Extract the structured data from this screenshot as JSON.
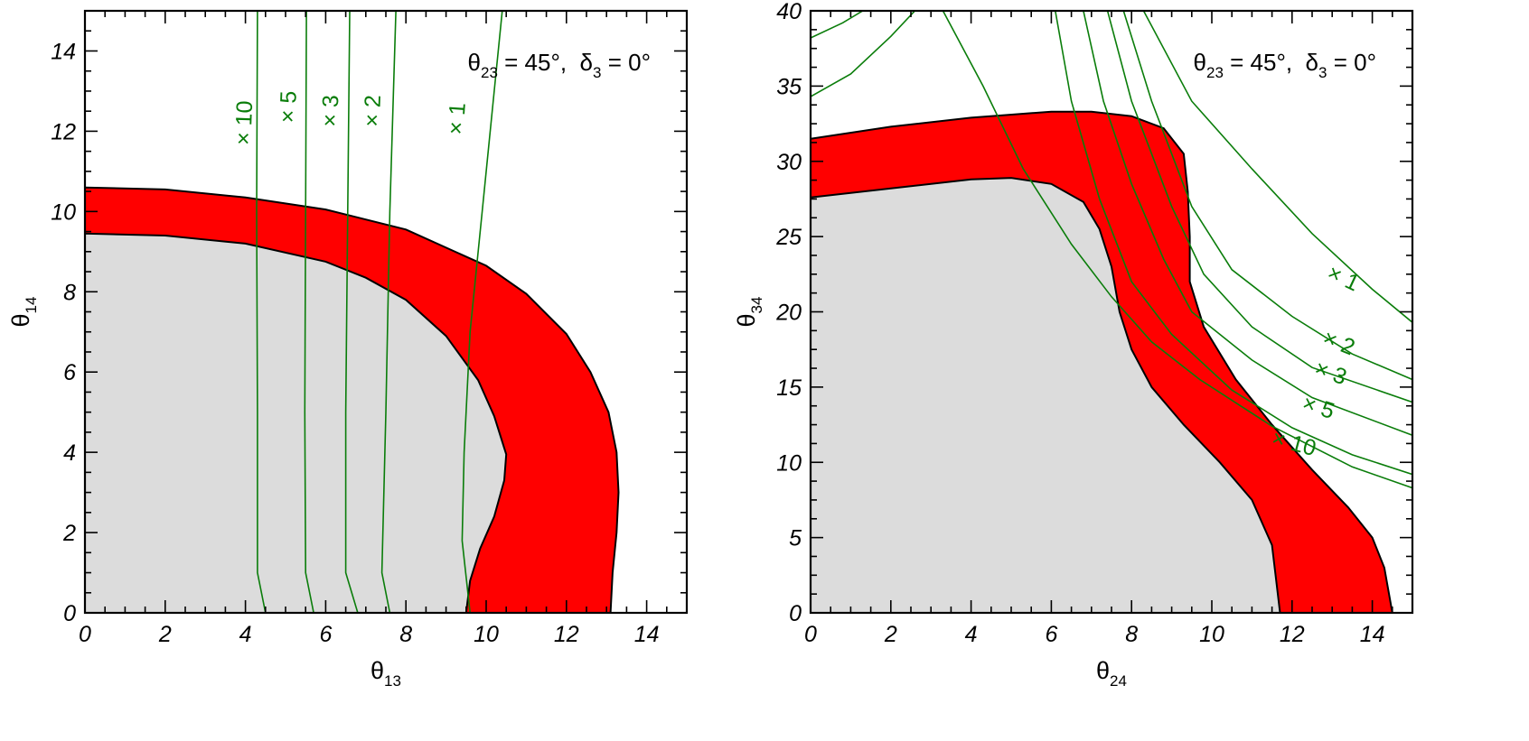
{
  "chart_data": [
    {
      "type": "area",
      "xlabel": "θ",
      "xlabel_sub": "13",
      "ylabel": "θ",
      "ylabel_sub": "14",
      "xlim": [
        0,
        15
      ],
      "ylim": [
        0,
        15
      ],
      "xticks": [
        "0",
        "2",
        "4",
        "6",
        "8",
        "10",
        "12",
        "14"
      ],
      "yticks": [
        "0",
        "2",
        "4",
        "6",
        "8",
        "10",
        "12",
        "14"
      ],
      "annotation": {
        "theta": "θ",
        "theta_sub": "23",
        "theta_val": " = 45°,  ",
        "delta": "δ",
        "delta_sub": "3",
        "delta_val": " = 0°"
      },
      "colors": {
        "allowed": "#dcdcdc",
        "band": "#ff0000",
        "contour": "#0a7d0a"
      },
      "allowed_region_boundary": [
        [
          0,
          9.45
        ],
        [
          2,
          9.4
        ],
        [
          4,
          9.2
        ],
        [
          6,
          8.75
        ],
        [
          7,
          8.35
        ],
        [
          8,
          7.8
        ],
        [
          9,
          6.9
        ],
        [
          9.8,
          5.8
        ],
        [
          10.2,
          4.9
        ],
        [
          10.5,
          3.95
        ],
        [
          10.45,
          3.3
        ],
        [
          10.2,
          2.4
        ],
        [
          9.85,
          1.6
        ],
        [
          9.6,
          0.8
        ],
        [
          9.5,
          0
        ]
      ],
      "band_outer_boundary": [
        [
          0,
          10.6
        ],
        [
          2,
          10.55
        ],
        [
          4,
          10.35
        ],
        [
          6,
          10.05
        ],
        [
          8,
          9.55
        ],
        [
          10,
          8.65
        ],
        [
          11,
          7.95
        ],
        [
          12,
          6.95
        ],
        [
          12.6,
          6.0
        ],
        [
          13.05,
          5.0
        ],
        [
          13.25,
          4.0
        ],
        [
          13.3,
          3.0
        ],
        [
          13.25,
          2.0
        ],
        [
          13.15,
          1.0
        ],
        [
          13.1,
          0
        ]
      ],
      "contours": [
        {
          "label": "× 1",
          "points": [
            [
              9.6,
              0
            ],
            [
              9.4,
              1.8
            ],
            [
              9.45,
              4
            ],
            [
              9.6,
              7
            ],
            [
              9.9,
              10
            ],
            [
              10.2,
              13
            ],
            [
              10.4,
              15
            ]
          ],
          "label_at": [
            9.45,
            12.3
          ],
          "label_rot": -86
        },
        {
          "label": "× 2",
          "points": [
            [
              7.6,
              0
            ],
            [
              7.4,
              1
            ],
            [
              7.5,
              5
            ],
            [
              7.6,
              10
            ],
            [
              7.75,
              15
            ]
          ],
          "label_at": [
            7.35,
            12.5
          ],
          "label_rot": -88
        },
        {
          "label": "× 3",
          "points": [
            [
              6.8,
              0
            ],
            [
              6.5,
              1
            ],
            [
              6.5,
              5
            ],
            [
              6.55,
              10
            ],
            [
              6.6,
              15
            ]
          ],
          "label_at": [
            6.3,
            12.5
          ],
          "label_rot": -88
        },
        {
          "label": "× 5",
          "points": [
            [
              5.7,
              0
            ],
            [
              5.5,
              1
            ],
            [
              5.48,
              5
            ],
            [
              5.5,
              10
            ],
            [
              5.52,
              15
            ]
          ],
          "label_at": [
            5.25,
            12.6
          ],
          "label_rot": -88
        },
        {
          "label": "× 10",
          "points": [
            [
              4.5,
              0
            ],
            [
              4.3,
              1
            ],
            [
              4.3,
              5
            ],
            [
              4.28,
              10
            ],
            [
              4.3,
              15
            ]
          ],
          "label_at": [
            4.15,
            12.2
          ],
          "label_rot": -88
        }
      ]
    },
    {
      "type": "area",
      "xlabel": "θ",
      "xlabel_sub": "24",
      "ylabel": "θ",
      "ylabel_sub": "34",
      "xlim": [
        0,
        15
      ],
      "ylim": [
        0,
        40
      ],
      "xticks": [
        "0",
        "2",
        "4",
        "6",
        "8",
        "10",
        "12",
        "14"
      ],
      "yticks": [
        "0",
        "5",
        "10",
        "15",
        "20",
        "25",
        "30",
        "35",
        "40"
      ],
      "annotation": {
        "theta": "θ",
        "theta_sub": "23",
        "theta_val": " = 45°,  ",
        "delta": "δ",
        "delta_sub": "3",
        "delta_val": " = 0°"
      },
      "colors": {
        "allowed": "#dcdcdc",
        "band": "#ff0000",
        "contour": "#0a7d0a"
      },
      "allowed_region_boundary": [
        [
          0,
          27.6
        ],
        [
          2,
          28.2
        ],
        [
          4,
          28.8
        ],
        [
          5,
          28.9
        ],
        [
          6,
          28.5
        ],
        [
          6.8,
          27.3
        ],
        [
          7.2,
          25.5
        ],
        [
          7.5,
          23
        ],
        [
          7.7,
          20
        ],
        [
          8,
          17.5
        ],
        [
          8.5,
          15
        ],
        [
          9.3,
          12.5
        ],
        [
          10.2,
          10
        ],
        [
          11,
          7.5
        ],
        [
          11.5,
          4.5
        ],
        [
          11.7,
          0
        ]
      ],
      "band_outer_boundary": [
        [
          0,
          31.5
        ],
        [
          2,
          32.3
        ],
        [
          4,
          32.9
        ],
        [
          6,
          33.3
        ],
        [
          7,
          33.3
        ],
        [
          8,
          33
        ],
        [
          8.8,
          32.2
        ],
        [
          9.3,
          30.5
        ],
        [
          9.4,
          28
        ],
        [
          9.45,
          25
        ],
        [
          9.45,
          22
        ],
        [
          9.8,
          19
        ],
        [
          10.6,
          15.5
        ],
        [
          11.5,
          12.5
        ],
        [
          12.5,
          9.5
        ],
        [
          13.4,
          7
        ],
        [
          14,
          5
        ],
        [
          14.3,
          3
        ],
        [
          14.5,
          0
        ]
      ],
      "contours": [
        {
          "label": "× 1",
          "points": [
            [
              8.3,
              40
            ],
            [
              9.5,
              34
            ],
            [
              11,
              29.5
            ],
            [
              12.5,
              25.2
            ],
            [
              14,
              21.5
            ],
            [
              15,
              19.3
            ]
          ],
          "label_at": [
            13.2,
            21.8
          ],
          "label_rot": 25
        },
        {
          "label": "× 2",
          "points": [
            [
              7.8,
              40
            ],
            [
              8.5,
              34
            ],
            [
              9.5,
              27
            ],
            [
              10.5,
              22.8
            ],
            [
              12,
              19.7
            ],
            [
              13.5,
              17.2
            ],
            [
              15,
              15.5
            ]
          ],
          "label_at": [
            13.1,
            17.5
          ],
          "label_rot": 22
        },
        {
          "label": "× 3",
          "points": [
            [
              7.4,
              40
            ],
            [
              8,
              34
            ],
            [
              9,
              27
            ],
            [
              9.8,
              22.5
            ],
            [
              11,
              19
            ],
            [
              12.5,
              16.3
            ],
            [
              15,
              14
            ]
          ],
          "label_at": [
            12.9,
            15.5
          ],
          "label_rot": 20
        },
        {
          "label": "× 5",
          "points": [
            [
              6.8,
              40
            ],
            [
              7.3,
              34
            ],
            [
              8,
              28.5
            ],
            [
              8.8,
              23.5
            ],
            [
              9.5,
              20
            ],
            [
              11,
              16.8
            ],
            [
              12.5,
              14.3
            ],
            [
              15,
              11.8
            ]
          ],
          "label_at": [
            12.6,
            13.2
          ],
          "label_rot": 18
        },
        {
          "label": "× 10",
          "points": [
            [
              6.1,
              40
            ],
            [
              6.5,
              34
            ],
            [
              7.2,
              27.5
            ],
            [
              8,
              22
            ],
            [
              9,
              18.5
            ],
            [
              10.5,
              14.8
            ],
            [
              12,
              12.3
            ],
            [
              13.5,
              10.5
            ],
            [
              15,
              9.2
            ]
          ],
          "label_at": [
            12,
            10.8
          ],
          "label_rot": 15
        },
        {
          "label": "",
          "points": [
            [
              0,
              34.3
            ],
            [
              1,
              35.8
            ],
            [
              2,
              38.3
            ],
            [
              2.6,
              40
            ]
          ],
          "label_at": null,
          "label_rot": 0
        },
        {
          "label": "",
          "points": [
            [
              0,
              38.2
            ],
            [
              0.8,
              39.2
            ],
            [
              1.3,
              40
            ]
          ],
          "label_at": null,
          "label_rot": 0
        },
        {
          "label": "",
          "points": [
            [
              3.3,
              40
            ],
            [
              4.3,
              35
            ],
            [
              5.3,
              29.5
            ],
            [
              6.5,
              24.5
            ],
            [
              7.5,
              21
            ],
            [
              8.5,
              18
            ],
            [
              9.7,
              15.5
            ],
            [
              11.5,
              12.4
            ],
            [
              13.5,
              9.7
            ],
            [
              15,
              8.3
            ]
          ],
          "label_at": null,
          "label_rot": 0
        }
      ]
    }
  ]
}
